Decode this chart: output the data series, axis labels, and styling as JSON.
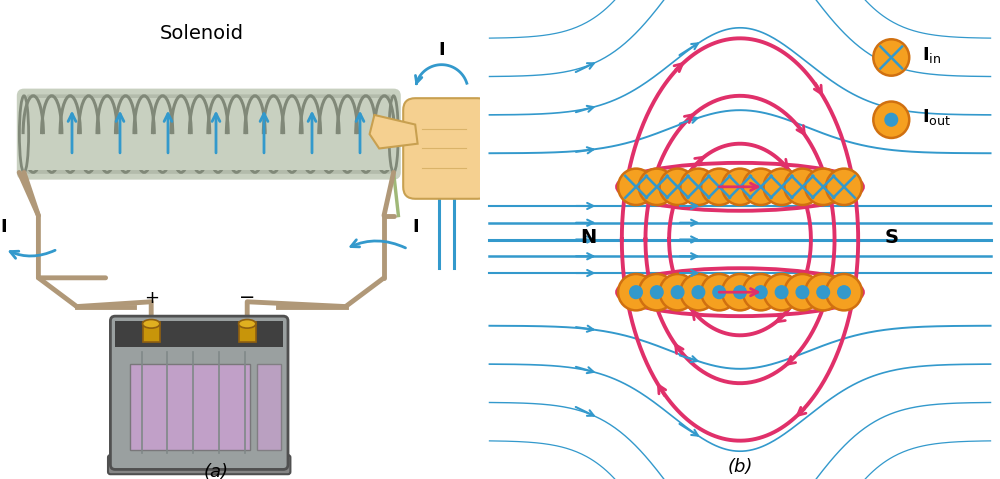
{
  "bg_color": "#ffffff",
  "solenoid_fill": "#c8d0c0",
  "solenoid_wire": "#808878",
  "blue_color": "#3399cc",
  "pink_color": "#e0306a",
  "orange_color": "#f5a020",
  "orange_edge": "#d07010",
  "battery_gray": "#9aa0a0",
  "battery_dark": "#404040",
  "battery_purple": "#c8a0d0",
  "wire_color": "#b09878",
  "hand_color": "#f5d090",
  "hand_edge": "#c8a050",
  "label_a": "(a)",
  "label_b": "(b)",
  "solenoid_label": "Solenoid"
}
